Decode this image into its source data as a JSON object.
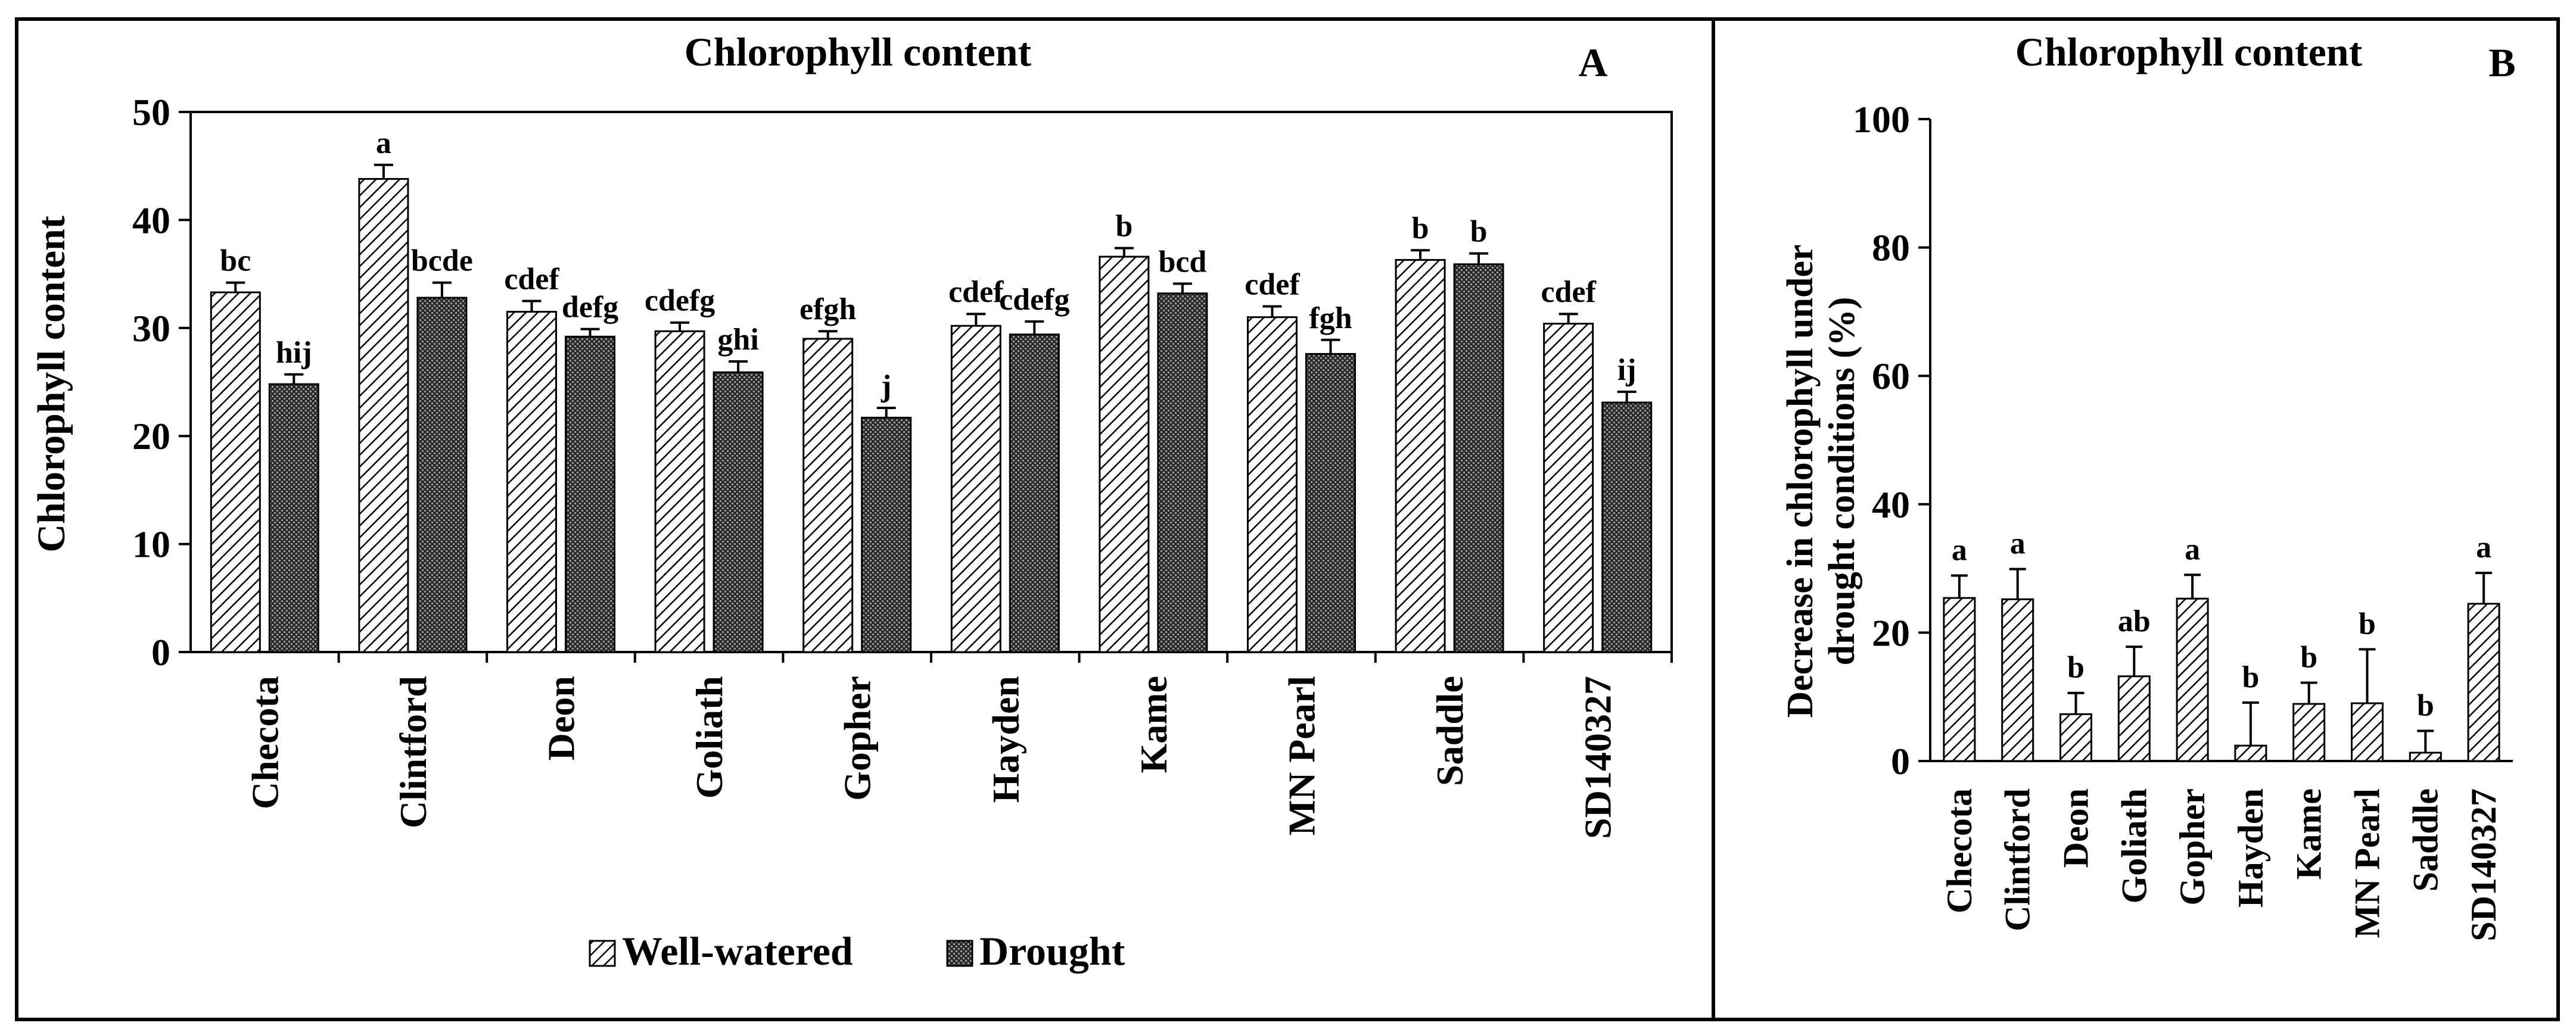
{
  "chart_data": [
    {
      "type": "bar",
      "panel": "A",
      "title": "Chlorophyll content",
      "ylabel": "Chlorophyll content",
      "xlabel": "",
      "ylim": [
        0,
        50
      ],
      "yticks": [
        0,
        10,
        20,
        30,
        40,
        50
      ],
      "categories": [
        "Checota",
        "Clintford",
        "Deon",
        "Goliath",
        "Gopher",
        "Hayden",
        "Kame",
        "MN Pearl",
        "Saddle",
        "SD140327"
      ],
      "series": [
        {
          "name": "Well-watered",
          "pattern": "hatch",
          "values": [
            33.3,
            43.8,
            31.5,
            29.7,
            29.0,
            30.2,
            36.6,
            31.0,
            36.3,
            30.4
          ],
          "errors": [
            0.9,
            1.3,
            1.0,
            0.8,
            0.7,
            1.1,
            0.8,
            1.0,
            0.9,
            0.9
          ],
          "letters": [
            "bc",
            "a",
            "cdef",
            "cdefg",
            "efgh",
            "cdef",
            "b",
            "cdef",
            "b",
            "cdef"
          ]
        },
        {
          "name": "Drought",
          "pattern": "dark",
          "values": [
            24.8,
            32.8,
            29.2,
            25.9,
            21.7,
            29.4,
            33.2,
            27.6,
            35.9,
            23.1
          ],
          "errors": [
            0.9,
            1.4,
            0.7,
            1.0,
            0.9,
            1.2,
            0.9,
            1.3,
            1.0,
            1.0
          ],
          "letters": [
            "hij",
            "bcde",
            "defg",
            "ghi",
            "j",
            "cdefg",
            "bcd",
            "fgh",
            "b",
            "ij"
          ]
        }
      ],
      "legend": [
        "Well-watered",
        "Drought"
      ],
      "legend_position": "bottom-center"
    },
    {
      "type": "bar",
      "panel": "B",
      "title": "Chlorophyll content",
      "ylabel": "Decrease in chlorophyll under drought conditions (%)",
      "ylabel_lines": [
        "Decrease in chlorophyll under",
        "drought conditions (%)"
      ],
      "xlabel": "",
      "ylim": [
        0,
        100
      ],
      "yticks": [
        0,
        20,
        40,
        60,
        80,
        100
      ],
      "categories": [
        "Checota",
        "Clintford",
        "Deon",
        "Goliath",
        "Gopher",
        "Hayden",
        "Kame",
        "MN Pearl",
        "Saddle",
        "SD140327"
      ],
      "values": [
        25.4,
        25.2,
        7.3,
        13.2,
        25.3,
        2.4,
        8.9,
        9.0,
        1.3,
        24.5
      ],
      "errors": [
        3.5,
        4.7,
        3.3,
        4.6,
        3.7,
        6.7,
        3.3,
        8.4,
        3.4,
        4.8
      ],
      "letters": [
        "a",
        "a",
        "b",
        "ab",
        "a",
        "b",
        "b",
        "b",
        "b",
        "a"
      ]
    }
  ]
}
